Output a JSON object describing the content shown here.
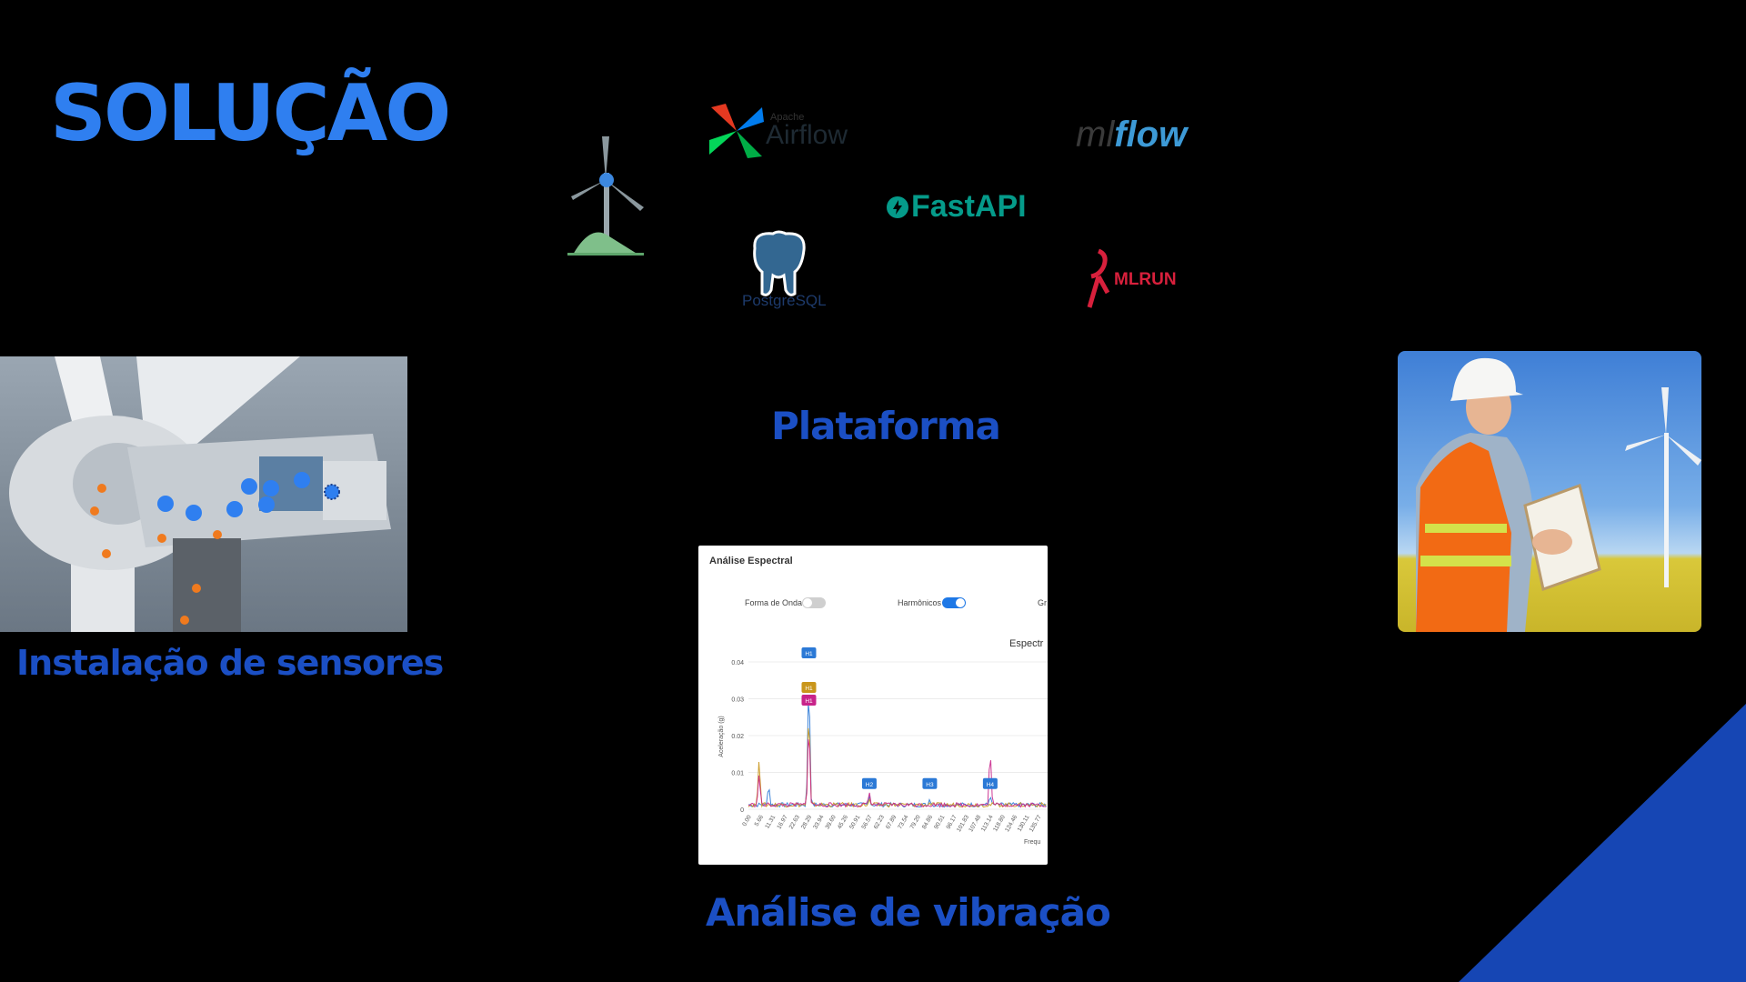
{
  "slide": {
    "title": "SOLUÇÃO",
    "sections": {
      "sensors": "Instalação de sensores",
      "platform": "Plataforma",
      "vibration": "Análise de vibração"
    }
  },
  "logos": {
    "airflow_sub": "Apache",
    "airflow": "Airflow",
    "mlflow_ml": "ml",
    "mlflow_flow": "flow",
    "fastapi": "FastAPI",
    "postgres": "PostgreSQL",
    "mlrun": "MLRUN"
  },
  "spectral_card": {
    "title": "Análise Espectral",
    "toggles": [
      {
        "label": "Forma de Onda",
        "on": false
      },
      {
        "label": "Harmônicos",
        "on": true
      },
      {
        "label": "Gr",
        "on": false
      }
    ],
    "panel_title": "Espectr"
  },
  "chart_data": {
    "type": "line",
    "ylabel": "Aceleração (g)",
    "xlabel": "Frequ",
    "y_ticks": [
      "0.04",
      "0.03",
      "0.02",
      "0.01",
      "0"
    ],
    "x_ticks": [
      "0.00",
      "5.66",
      "11.31",
      "16.97",
      "22.63",
      "28.29",
      "33.94",
      "39.60",
      "45.26",
      "50.91",
      "56.57",
      "62.23",
      "67.89",
      "73.54",
      "79.20",
      "84.86",
      "90.51",
      "96.17",
      "101.83",
      "107.48",
      "113.14",
      "118.80",
      "124.46",
      "130.11",
      "135.77"
    ],
    "ylim": [
      0,
      0.04
    ],
    "harmonic_markers": [
      {
        "label": "H1",
        "x": 28.29,
        "color": "#2b79d6"
      },
      {
        "label": "H1",
        "x": 28.29,
        "color": "#c9961b"
      },
      {
        "label": "H1",
        "x": 28.29,
        "color": "#c8248a"
      },
      {
        "label": "H2",
        "x": 56.57,
        "color": "#2b79d6"
      },
      {
        "label": "H3",
        "x": 84.86,
        "color": "#2b79d6"
      },
      {
        "label": "H4",
        "x": 113.14,
        "color": "#2b79d6"
      }
    ],
    "series": [
      {
        "color": "#2b79d6",
        "peaks": [
          [
            9.5,
            0.007
          ],
          [
            28.29,
            0.038
          ],
          [
            56.57,
            0.004
          ],
          [
            84.86,
            0.003
          ],
          [
            113.14,
            0.004
          ]
        ]
      },
      {
        "color": "#c9961b",
        "peaks": [
          [
            5.0,
            0.014
          ],
          [
            28.29,
            0.029
          ],
          [
            56.57,
            0.003
          ],
          [
            84.86,
            0.002
          ]
        ]
      },
      {
        "color": "#c8248a",
        "peaks": [
          [
            5.0,
            0.01
          ],
          [
            28.29,
            0.025
          ],
          [
            56.57,
            0.005
          ],
          [
            113.14,
            0.017
          ]
        ]
      }
    ]
  },
  "colors": {
    "title": "#2f7ff0",
    "section_label": "#1b4fc4",
    "sensor_blue": "#2f7ff0",
    "sensor_orange": "#f07a1e",
    "corner_triangle": "#1646b4"
  }
}
